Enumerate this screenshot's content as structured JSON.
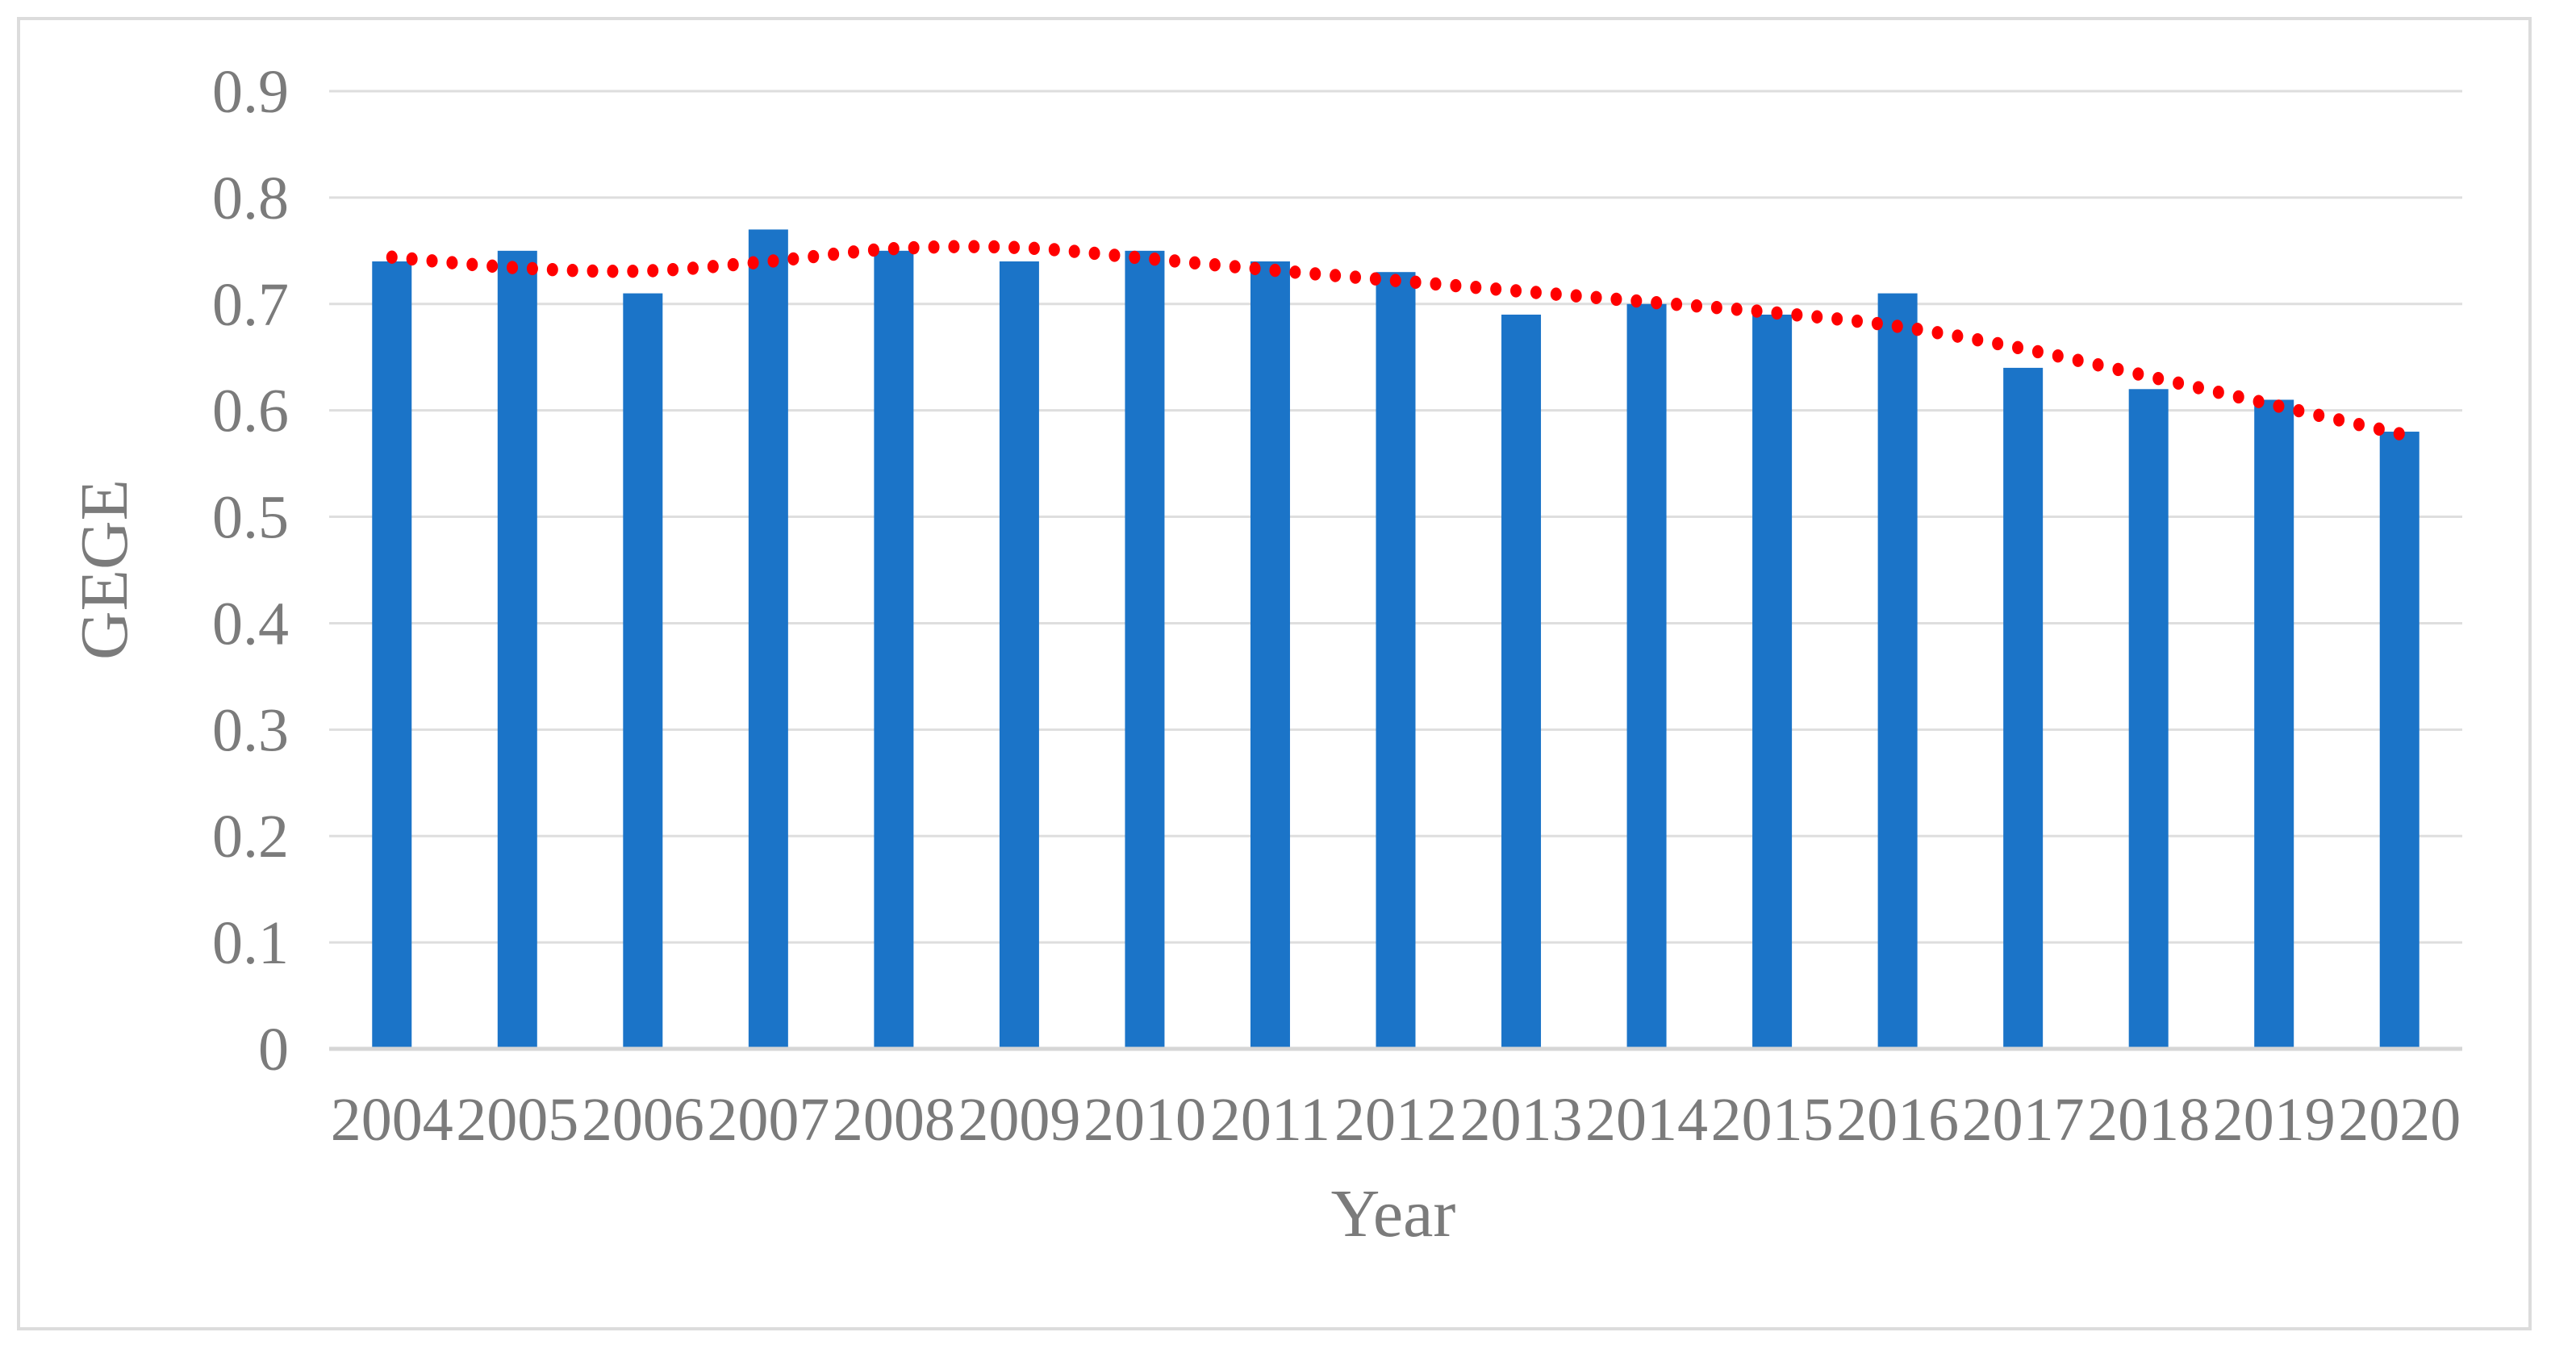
{
  "figure": {
    "background_color": "#ffffff",
    "border_color": "#dcdcdc"
  },
  "chart_data": {
    "type": "bar",
    "title": "",
    "xlabel": "Year",
    "ylabel": "GEGE",
    "categories": [
      "2004",
      "2005",
      "2006",
      "2007",
      "2008",
      "2009",
      "2010",
      "2011",
      "2012",
      "2013",
      "2014",
      "2015",
      "2016",
      "2017",
      "2018",
      "2019",
      "2020"
    ],
    "values": [
      0.74,
      0.75,
      0.71,
      0.77,
      0.75,
      0.74,
      0.75,
      0.74,
      0.73,
      0.69,
      0.7,
      0.69,
      0.71,
      0.64,
      0.62,
      0.61,
      0.58
    ],
    "series": [
      {
        "name": "GEGE bars",
        "type": "bar",
        "color": "#1b74c8",
        "values": [
          0.74,
          0.75,
          0.71,
          0.77,
          0.75,
          0.74,
          0.75,
          0.74,
          0.73,
          0.69,
          0.7,
          0.69,
          0.71,
          0.64,
          0.62,
          0.61,
          0.58
        ]
      },
      {
        "name": "polynomial trendline",
        "type": "dotted-line",
        "color": "#ff0000",
        "values": [
          0.744,
          0.734,
          0.731,
          0.74,
          0.752,
          0.753,
          0.743,
          0.732,
          0.722,
          0.712,
          0.702,
          0.692,
          0.679,
          0.658,
          0.632,
          0.605,
          0.578
        ]
      }
    ],
    "ylim": [
      0,
      0.9
    ],
    "ytick_labels": [
      "0",
      "0.1",
      "0.2",
      "0.3",
      "0.4",
      "0.5",
      "0.6",
      "0.7",
      "0.8",
      "0.9"
    ],
    "grid": true,
    "legend_position": "none",
    "gridline_color": "#dedede",
    "axis_line_color": "#d6d6d6",
    "text_color": "#7b7b7b"
  }
}
